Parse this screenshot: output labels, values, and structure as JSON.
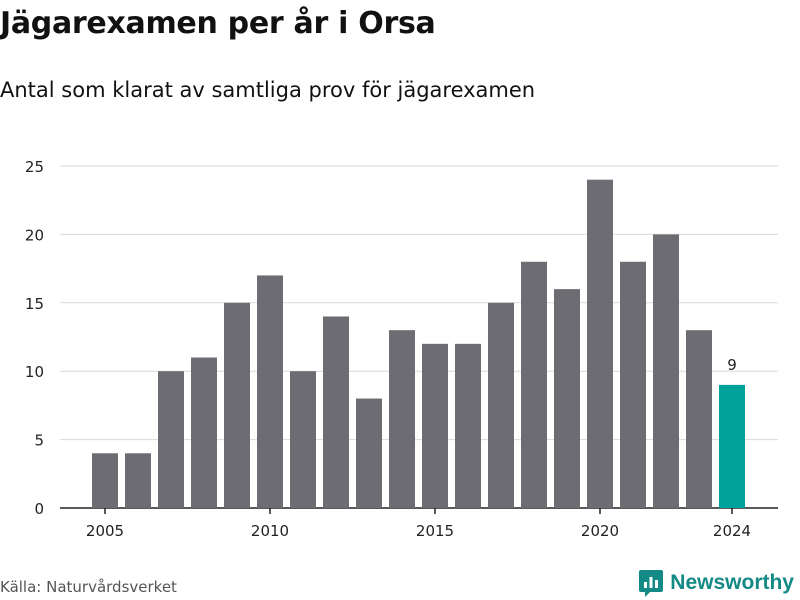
{
  "header": {
    "title": "Jägarexamen per år i Orsa",
    "subtitle": "Antal som klarat av samtliga prov för jägarexamen"
  },
  "footer": {
    "source": "Källa: Naturvårdsverket",
    "brand": "Newsworthy"
  },
  "colors": {
    "bar": "#6d6c72",
    "highlight": "#00a39a",
    "grid": "#d9d9d9",
    "brand": "#138a85"
  },
  "icons": {
    "brand_logo": "newsworthy-logo-icon"
  },
  "chart_data": {
    "type": "bar",
    "x": [
      2005,
      2006,
      2007,
      2008,
      2009,
      2010,
      2011,
      2012,
      2013,
      2014,
      2015,
      2016,
      2017,
      2018,
      2019,
      2020,
      2021,
      2022,
      2023,
      2024
    ],
    "values": [
      4,
      4,
      10,
      11,
      15,
      17,
      10,
      14,
      8,
      13,
      12,
      12,
      15,
      18,
      16,
      24,
      18,
      20,
      13,
      9
    ],
    "x_ticks": [
      "2005",
      "2010",
      "2015",
      "2020",
      "2024"
    ],
    "y_ticks": [
      "0",
      "5",
      "10",
      "15",
      "20",
      "25"
    ],
    "ylim": [
      0,
      25
    ],
    "grid": true,
    "highlight": {
      "x": 2024,
      "label": "9"
    }
  }
}
